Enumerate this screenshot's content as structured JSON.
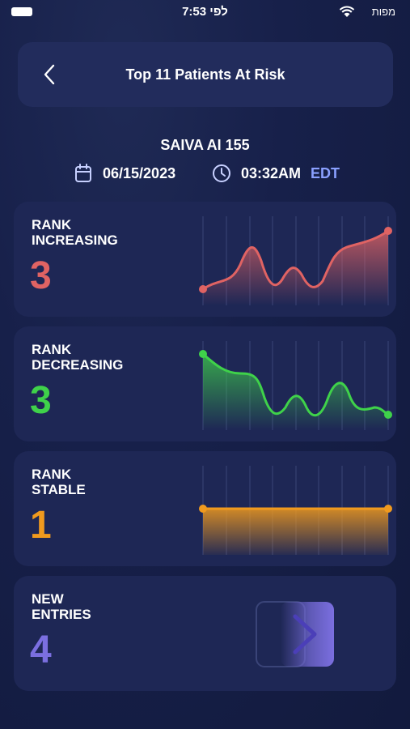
{
  "status_bar": {
    "time": "7:53 לפי",
    "carrier": "מפות"
  },
  "header": {
    "title": "Top 11 Patients At Risk"
  },
  "facility": "SAIVA AI 155",
  "report": {
    "date": "06/15/2023",
    "time": "03:32AM",
    "timezone": "EDT"
  },
  "cards": [
    {
      "label_line1": "RANK",
      "label_line2": "INCREASING",
      "count": "3",
      "color": "#e06363"
    },
    {
      "label_line1": "RANK",
      "label_line2": "DECREASING",
      "count": "3",
      "color": "#3fd24a"
    },
    {
      "label_line1": "RANK",
      "label_line2": "STABLE",
      "count": "1",
      "color": "#f09a1e"
    },
    {
      "label_line1": "NEW",
      "label_line2": "ENTRIES",
      "count": "4",
      "color": "#7b6fe0"
    }
  ],
  "icons": {
    "back": "chevron-left-icon",
    "date": "calendar-icon",
    "time": "clock-icon",
    "new_entries": "sign-in-arrow-icon"
  }
}
